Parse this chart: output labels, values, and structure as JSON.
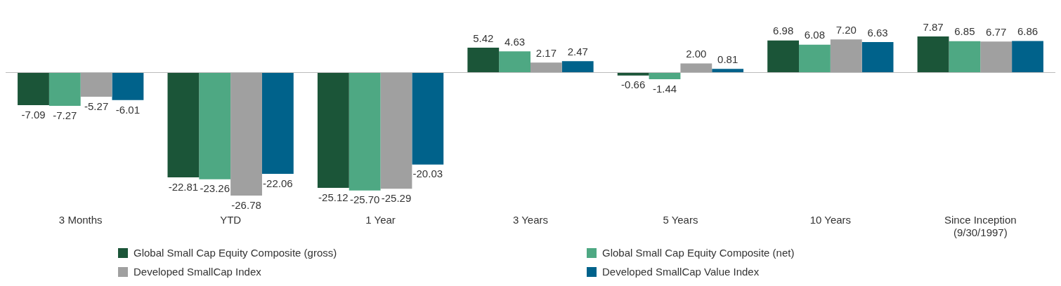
{
  "chart_data": {
    "type": "bar",
    "categories": [
      "3 Months",
      "YTD",
      "1 Year",
      "3 Years",
      "5 Years",
      "10 Years",
      "Since Inception\n(9/30/1997)"
    ],
    "series": [
      {
        "name": "Global Small Cap Equity Composite (gross)",
        "color": "#1b5538",
        "values": [
          -7.09,
          -22.81,
          -25.12,
          5.42,
          -0.66,
          6.98,
          7.87
        ],
        "value_labels": [
          "-7.09",
          "-22.81",
          "-25.12",
          "5.42",
          "-0.66",
          "6.98",
          "7.87"
        ]
      },
      {
        "name": "Global Small Cap Equity Composite (net)",
        "color": "#4ea883",
        "values": [
          -7.27,
          -23.26,
          -25.7,
          4.63,
          -1.44,
          6.08,
          6.85
        ],
        "value_labels": [
          "-7.27",
          "-23.26",
          "-25.70",
          "4.63",
          "-1.44",
          "6.08",
          "6.85"
        ]
      },
      {
        "name": "Developed SmallCap Index",
        "color": "#a0a0a0",
        "values": [
          -5.27,
          -26.78,
          -25.29,
          2.17,
          2.0,
          7.2,
          6.77
        ],
        "value_labels": [
          "-5.27",
          "-26.78",
          "-25.29",
          "2.17",
          "2.00",
          "7.20",
          "6.77"
        ]
      },
      {
        "name": "Developed SmallCap Value Index",
        "color": "#00628b",
        "values": [
          -6.01,
          -22.06,
          -20.03,
          2.47,
          0.81,
          6.63,
          6.86
        ],
        "value_labels": [
          "-6.01",
          "-22.06",
          "-20.03",
          "2.47",
          "0.81",
          "6.63",
          "6.86"
        ]
      }
    ],
    "legend": "bottom"
  }
}
